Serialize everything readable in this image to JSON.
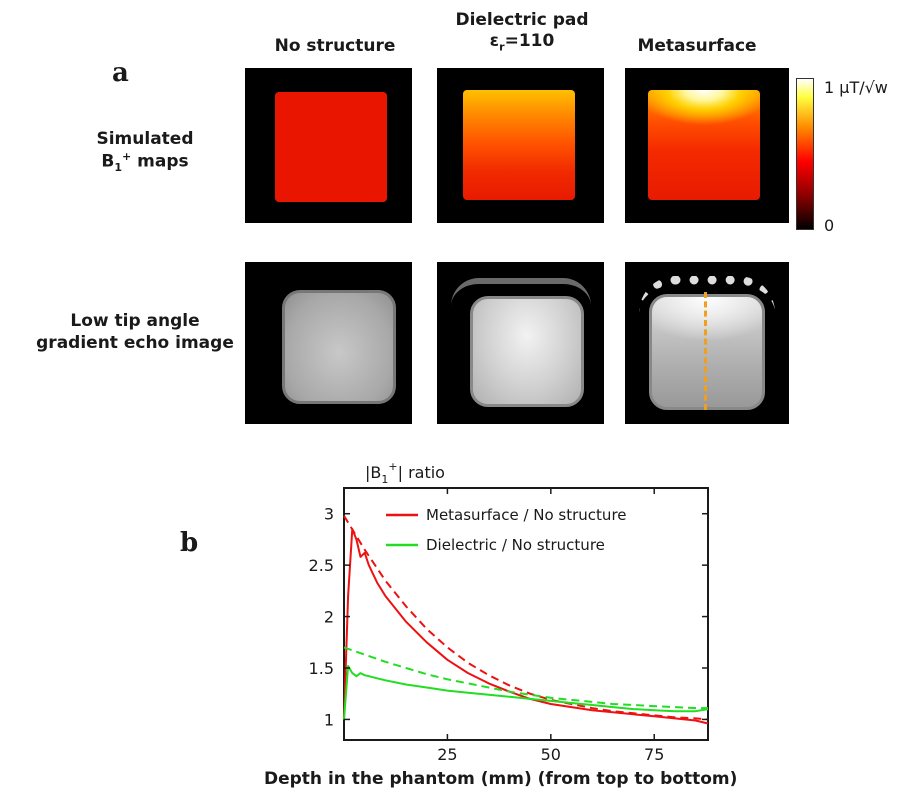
{
  "panel_a": "a",
  "panel_b": "b",
  "columns": {
    "no_structure": "No structure",
    "dielectric_line1": "Dielectric pad",
    "dielectric_eps": "ε",
    "dielectric_sub": "r",
    "dielectric_val": "=110",
    "metasurface": "Metasurface"
  },
  "rows": {
    "simulated_line1": "Simulated",
    "simulated_B": "B",
    "simulated_sub": "1",
    "simulated_sup": "+",
    "simulated_maps": " maps",
    "gre_line1": "Low tip angle",
    "gre_line2": "gradient echo image"
  },
  "colorbar": {
    "max_label": "1 μT/√w",
    "min_label": "0",
    "colors": [
      "#000000",
      "#8a0000",
      "#ff0000",
      "#ff8c00",
      "#ffff40",
      "#ffffff"
    ]
  },
  "colors": {
    "metasurface": "#ee1111",
    "dielectric": "#22dd22",
    "profile_line": "#f0a020"
  },
  "chart_data": {
    "type": "line",
    "title": "",
    "ylabel_parts": {
      "open": "|B",
      "sub": "1",
      "sup": "+",
      "close": "| ratio"
    },
    "xlabel": "Depth in the phantom (mm) (from top to bottom)",
    "xlim": [
      0,
      88
    ],
    "ylim": [
      0.8,
      3.25
    ],
    "xticks": [
      25,
      50,
      75
    ],
    "yticks": [
      1,
      1.5,
      2,
      2.5,
      3
    ],
    "ytick_labels": [
      "1",
      "1.5",
      "2",
      "2.5",
      "3"
    ],
    "legend_position": "top-right",
    "series": [
      {
        "name": "Metasurface / No structure",
        "style": "solid",
        "color": "#ee1111",
        "x": [
          0,
          1,
          2,
          3,
          4,
          5,
          6,
          8,
          10,
          15,
          20,
          25,
          30,
          35,
          40,
          45,
          50,
          55,
          60,
          65,
          70,
          75,
          80,
          85,
          88
        ],
        "y": [
          1.0,
          2.2,
          2.85,
          2.75,
          2.58,
          2.62,
          2.5,
          2.33,
          2.2,
          1.95,
          1.75,
          1.58,
          1.45,
          1.35,
          1.27,
          1.2,
          1.15,
          1.12,
          1.09,
          1.07,
          1.05,
          1.03,
          1.01,
          0.99,
          0.96
        ]
      },
      {
        "name": "",
        "style": "dashed",
        "color": "#ee1111",
        "x": [
          0,
          5,
          10,
          15,
          20,
          25,
          30,
          35,
          40,
          45,
          50,
          55,
          60,
          65,
          70,
          75,
          80,
          85,
          88
        ],
        "y": [
          2.98,
          2.65,
          2.35,
          2.1,
          1.88,
          1.7,
          1.55,
          1.43,
          1.33,
          1.25,
          1.19,
          1.15,
          1.11,
          1.08,
          1.06,
          1.04,
          1.02,
          1.01,
          1.0
        ]
      },
      {
        "name": "Dielectric / No structure",
        "style": "solid",
        "color": "#22dd22",
        "x": [
          0,
          1,
          2,
          3,
          4,
          5,
          6,
          8,
          10,
          15,
          20,
          25,
          30,
          35,
          40,
          45,
          50,
          55,
          60,
          65,
          70,
          75,
          80,
          85,
          88
        ],
        "y": [
          1.0,
          1.52,
          1.45,
          1.42,
          1.45,
          1.43,
          1.42,
          1.4,
          1.38,
          1.34,
          1.31,
          1.28,
          1.26,
          1.24,
          1.22,
          1.2,
          1.18,
          1.16,
          1.14,
          1.12,
          1.1,
          1.09,
          1.08,
          1.08,
          1.1
        ]
      },
      {
        "name": "",
        "style": "dashed",
        "color": "#22dd22",
        "x": [
          0,
          5,
          10,
          15,
          20,
          25,
          30,
          35,
          40,
          45,
          50,
          55,
          60,
          65,
          70,
          75,
          80,
          85,
          88
        ],
        "y": [
          1.7,
          1.63,
          1.56,
          1.5,
          1.44,
          1.39,
          1.35,
          1.31,
          1.27,
          1.24,
          1.21,
          1.19,
          1.17,
          1.15,
          1.14,
          1.13,
          1.12,
          1.11,
          1.11
        ]
      }
    ]
  }
}
